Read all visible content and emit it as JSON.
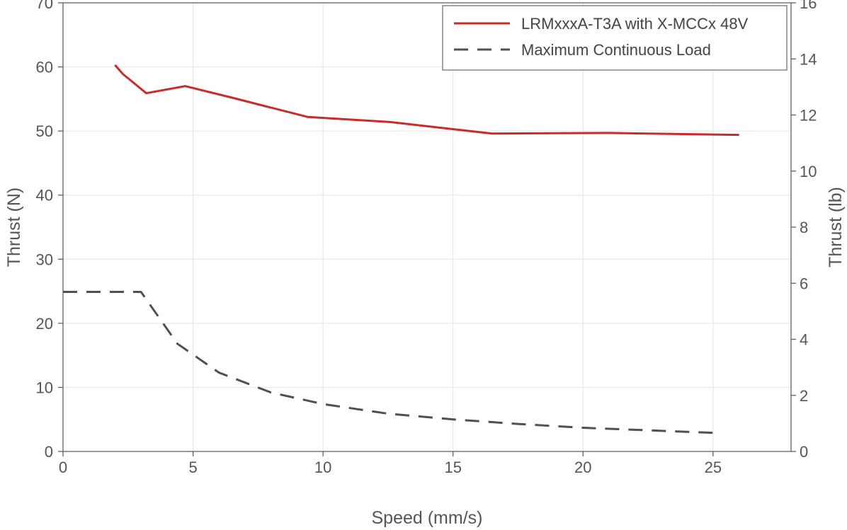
{
  "chart_data": {
    "type": "line",
    "title": "",
    "xlabel": "Speed (mm/s)",
    "ylabel": "Thrust (N)",
    "y2label": "Thrust (lb)",
    "xlim": [
      0,
      28
    ],
    "ylim": [
      0,
      70
    ],
    "y2lim": [
      0,
      16
    ],
    "xticks": [
      0,
      5,
      10,
      15,
      20,
      25
    ],
    "yticks": [
      0,
      10,
      20,
      30,
      40,
      50,
      60,
      70
    ],
    "y2ticks": [
      0,
      2,
      4,
      6,
      8,
      10,
      12,
      14,
      16
    ],
    "grid": true,
    "legend_position": "top-right",
    "series": [
      {
        "name": "LRMxxxA-T3A with X-MCCx 48V",
        "color": "#cc2a2a",
        "style": "solid",
        "x": [
          2.0,
          2.3,
          3.2,
          4.7,
          6.5,
          9.4,
          12.6,
          16.5,
          21.0,
          26.0
        ],
        "y": [
          60.3,
          58.9,
          55.9,
          57.0,
          55.2,
          52.2,
          51.4,
          49.6,
          49.7,
          49.4
        ]
      },
      {
        "name": "Maximum Continuous Load",
        "color": "#505050",
        "style": "dashed",
        "x": [
          0,
          3.0,
          4.4,
          6.0,
          8.0,
          10.0,
          12.5,
          15.0,
          17.5,
          20.0,
          22.5,
          25.0
        ],
        "y": [
          24.9,
          24.9,
          16.8,
          12.3,
          9.2,
          7.4,
          5.9,
          5.0,
          4.3,
          3.7,
          3.3,
          2.9
        ]
      }
    ]
  }
}
